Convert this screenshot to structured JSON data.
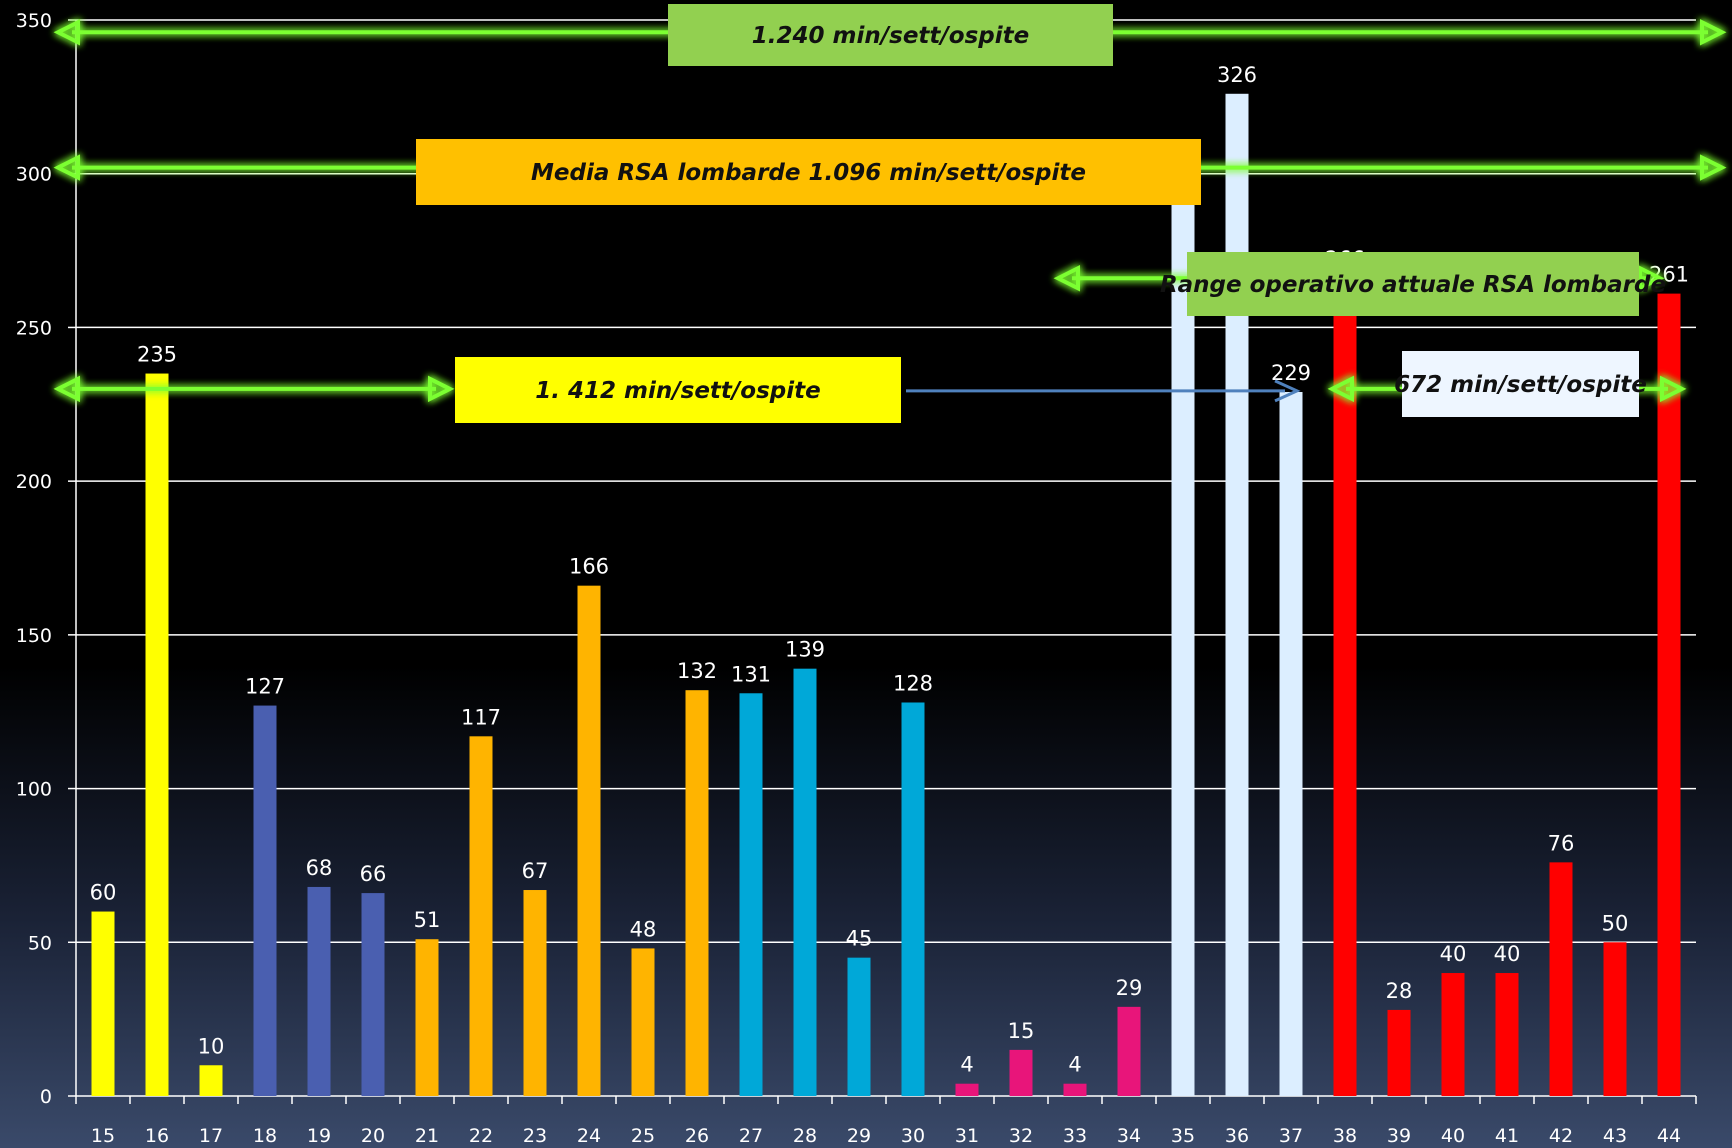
{
  "chart_data": {
    "type": "bar",
    "title": "",
    "xlabel": "",
    "ylabel": "",
    "ylim": [
      0,
      350
    ],
    "yticks": [
      0,
      50,
      100,
      150,
      200,
      250,
      300,
      350
    ],
    "grid": true,
    "legend": "none",
    "categories": [
      "15",
      "16",
      "17",
      "18",
      "19",
      "20",
      "21",
      "22",
      "23",
      "24",
      "25",
      "26",
      "27",
      "28",
      "29",
      "30",
      "31",
      "32",
      "33",
      "34",
      "35",
      "36",
      "37",
      "38",
      "39",
      "40",
      "41",
      "42",
      "43",
      "44"
    ],
    "values": [
      60,
      235,
      10,
      127,
      68,
      66,
      51,
      117,
      67,
      166,
      48,
      132,
      131,
      139,
      45,
      128,
      4,
      15,
      4,
      29,
      302,
      326,
      229,
      266,
      28,
      40,
      40,
      76,
      50,
      261
    ],
    "data_labels": [
      "60",
      "235",
      "10",
      "127",
      "68",
      "66",
      "51",
      "117",
      "67",
      "166",
      "48",
      "132",
      "131",
      "139",
      "45",
      "128",
      "4",
      "15",
      "4",
      "29",
      "302",
      "326",
      "229",
      "266",
      "28",
      "40",
      "40",
      "76",
      "50",
      "261"
    ],
    "bar_colors": [
      "#ffff00",
      "#ffff00",
      "#ffff00",
      "#4a5fb0",
      "#4a5fb0",
      "#4a5fb0",
      "#ffb400",
      "#ffb400",
      "#ffb400",
      "#ffb400",
      "#ffb400",
      "#ffb400",
      "#00a8d8",
      "#00a8d8",
      "#00a8d8",
      "#00a8d8",
      "#e8157a",
      "#e8157a",
      "#e8157a",
      "#e8157a",
      "#dceeff",
      "#dceeff",
      "#dceeff",
      "#ff0000",
      "#ff0000",
      "#ff0000",
      "#ff0000",
      "#ff0000",
      "#ff0000",
      "#ff0000"
    ],
    "annotations": [
      {
        "id": "ann-1240",
        "text": "1.240 min/sett/ospite",
        "y_value": 346,
        "box_color": "#92d050"
      },
      {
        "id": "ann-media",
        "text": "Media RSA lombarde 1.096 min/sett/ospite",
        "y_value": 302,
        "box_color": "#ffc000"
      },
      {
        "id": "ann-range",
        "text": "Range operativo attuale RSA lombarde",
        "y_value": 266,
        "box_color": "#92d050"
      },
      {
        "id": "ann-1412",
        "text": "1. 412 min/sett/ospite",
        "y_value": 230,
        "box_color": "#ffff00"
      },
      {
        "id": "ann-672",
        "text": "672 min/sett/ospite",
        "y_value": 230,
        "box_color": "#eef6ff"
      }
    ]
  },
  "colors": {
    "background": "#000000",
    "grid": "#ffffff",
    "glow_arrow": "#7cff30",
    "blue_arrow": "#4f81bd"
  }
}
